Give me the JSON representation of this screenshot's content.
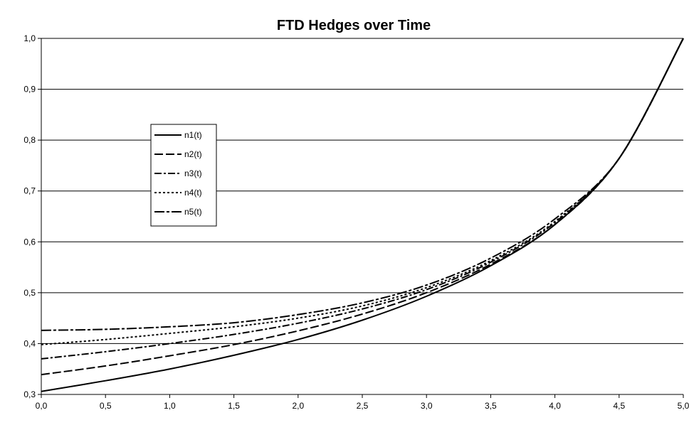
{
  "chart_data": {
    "type": "line",
    "title": "FTD Hedges over Time",
    "xlabel": "",
    "ylabel": "",
    "xlim": [
      0.0,
      5.0
    ],
    "ylim": [
      0.3,
      1.0
    ],
    "x_ticks": [
      0.0,
      0.5,
      1.0,
      1.5,
      2.0,
      2.5,
      3.0,
      3.5,
      4.0,
      4.5,
      5.0
    ],
    "x_tick_labels": [
      "0,0",
      "0,5",
      "1,0",
      "1,5",
      "2,0",
      "2,5",
      "3,0",
      "3,5",
      "4,0",
      "4,5",
      "5,0"
    ],
    "y_ticks": [
      0.3,
      0.4,
      0.5,
      0.6,
      0.7,
      0.8,
      0.9,
      1.0
    ],
    "y_tick_labels": [
      "0,3",
      "0,4",
      "0,5",
      "0,6",
      "0,7",
      "0,8",
      "0,9",
      "1,0"
    ],
    "grid": "horizontal",
    "legend_position": "left",
    "x": [
      0.0,
      0.5,
      1.0,
      1.5,
      2.0,
      2.5,
      3.0,
      3.5,
      4.0,
      4.5,
      5.0
    ],
    "series": [
      {
        "name": "n1(t)",
        "values": [
          0.306,
          0.327,
          0.35,
          0.377,
          0.408,
          0.446,
          0.493,
          0.553,
          0.634,
          0.764,
          1.0
        ]
      },
      {
        "name": "n2(t)",
        "values": [
          0.339,
          0.356,
          0.376,
          0.398,
          0.425,
          0.458,
          0.5,
          0.556,
          0.634,
          0.764,
          1.0
        ]
      },
      {
        "name": "n3(t)",
        "values": [
          0.37,
          0.384,
          0.4,
          0.418,
          0.44,
          0.468,
          0.506,
          0.56,
          0.638,
          0.764,
          1.0
        ]
      },
      {
        "name": "n4(t)",
        "values": [
          0.398,
          0.408,
          0.42,
          0.433,
          0.45,
          0.474,
          0.51,
          0.563,
          0.64,
          0.764,
          1.0
        ]
      },
      {
        "name": "n5(t)",
        "values": [
          0.426,
          0.428,
          0.433,
          0.441,
          0.457,
          0.48,
          0.515,
          0.568,
          0.645,
          0.764,
          1.0
        ]
      }
    ],
    "series_styles": [
      {
        "dash": "",
        "color": "#000000"
      },
      {
        "dash": "12 4",
        "color": "#000000"
      },
      {
        "dash": "10 3 3 3",
        "color": "#000000"
      },
      {
        "dash": "3 3",
        "color": "#000000"
      },
      {
        "dash": "14 3 4 3",
        "color": "#000000"
      }
    ]
  }
}
